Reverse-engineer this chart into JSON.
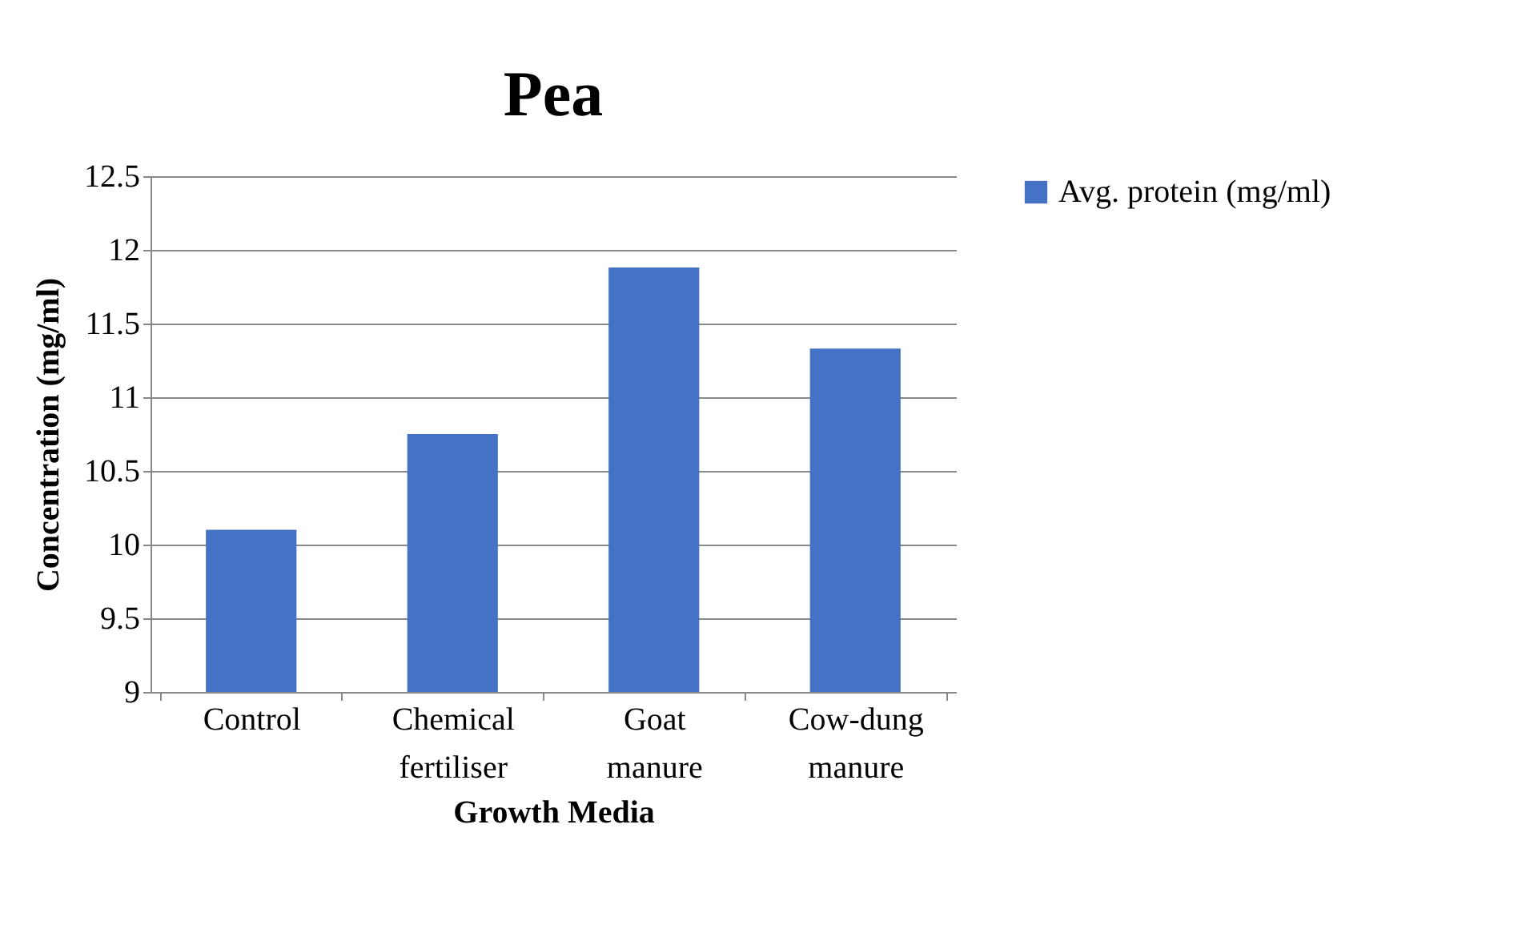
{
  "chart_data": {
    "type": "bar",
    "title": "Pea",
    "xlabel": "Growth Media",
    "ylabel": "Concentration (mg/ml)",
    "categories": [
      "Control",
      "Chemical fertiliser",
      "Goat manure",
      "Cow-dung manure"
    ],
    "series": [
      {
        "name": "Avg. protein (mg/ml)",
        "color": "#4472c4",
        "values": [
          10.1,
          10.75,
          11.88,
          11.33
        ]
      }
    ],
    "ylim": [
      9,
      12.5
    ],
    "yticks": [
      9,
      9.5,
      10,
      10.5,
      11,
      11.5,
      12,
      12.5
    ],
    "grid": "y",
    "legend": "right"
  }
}
